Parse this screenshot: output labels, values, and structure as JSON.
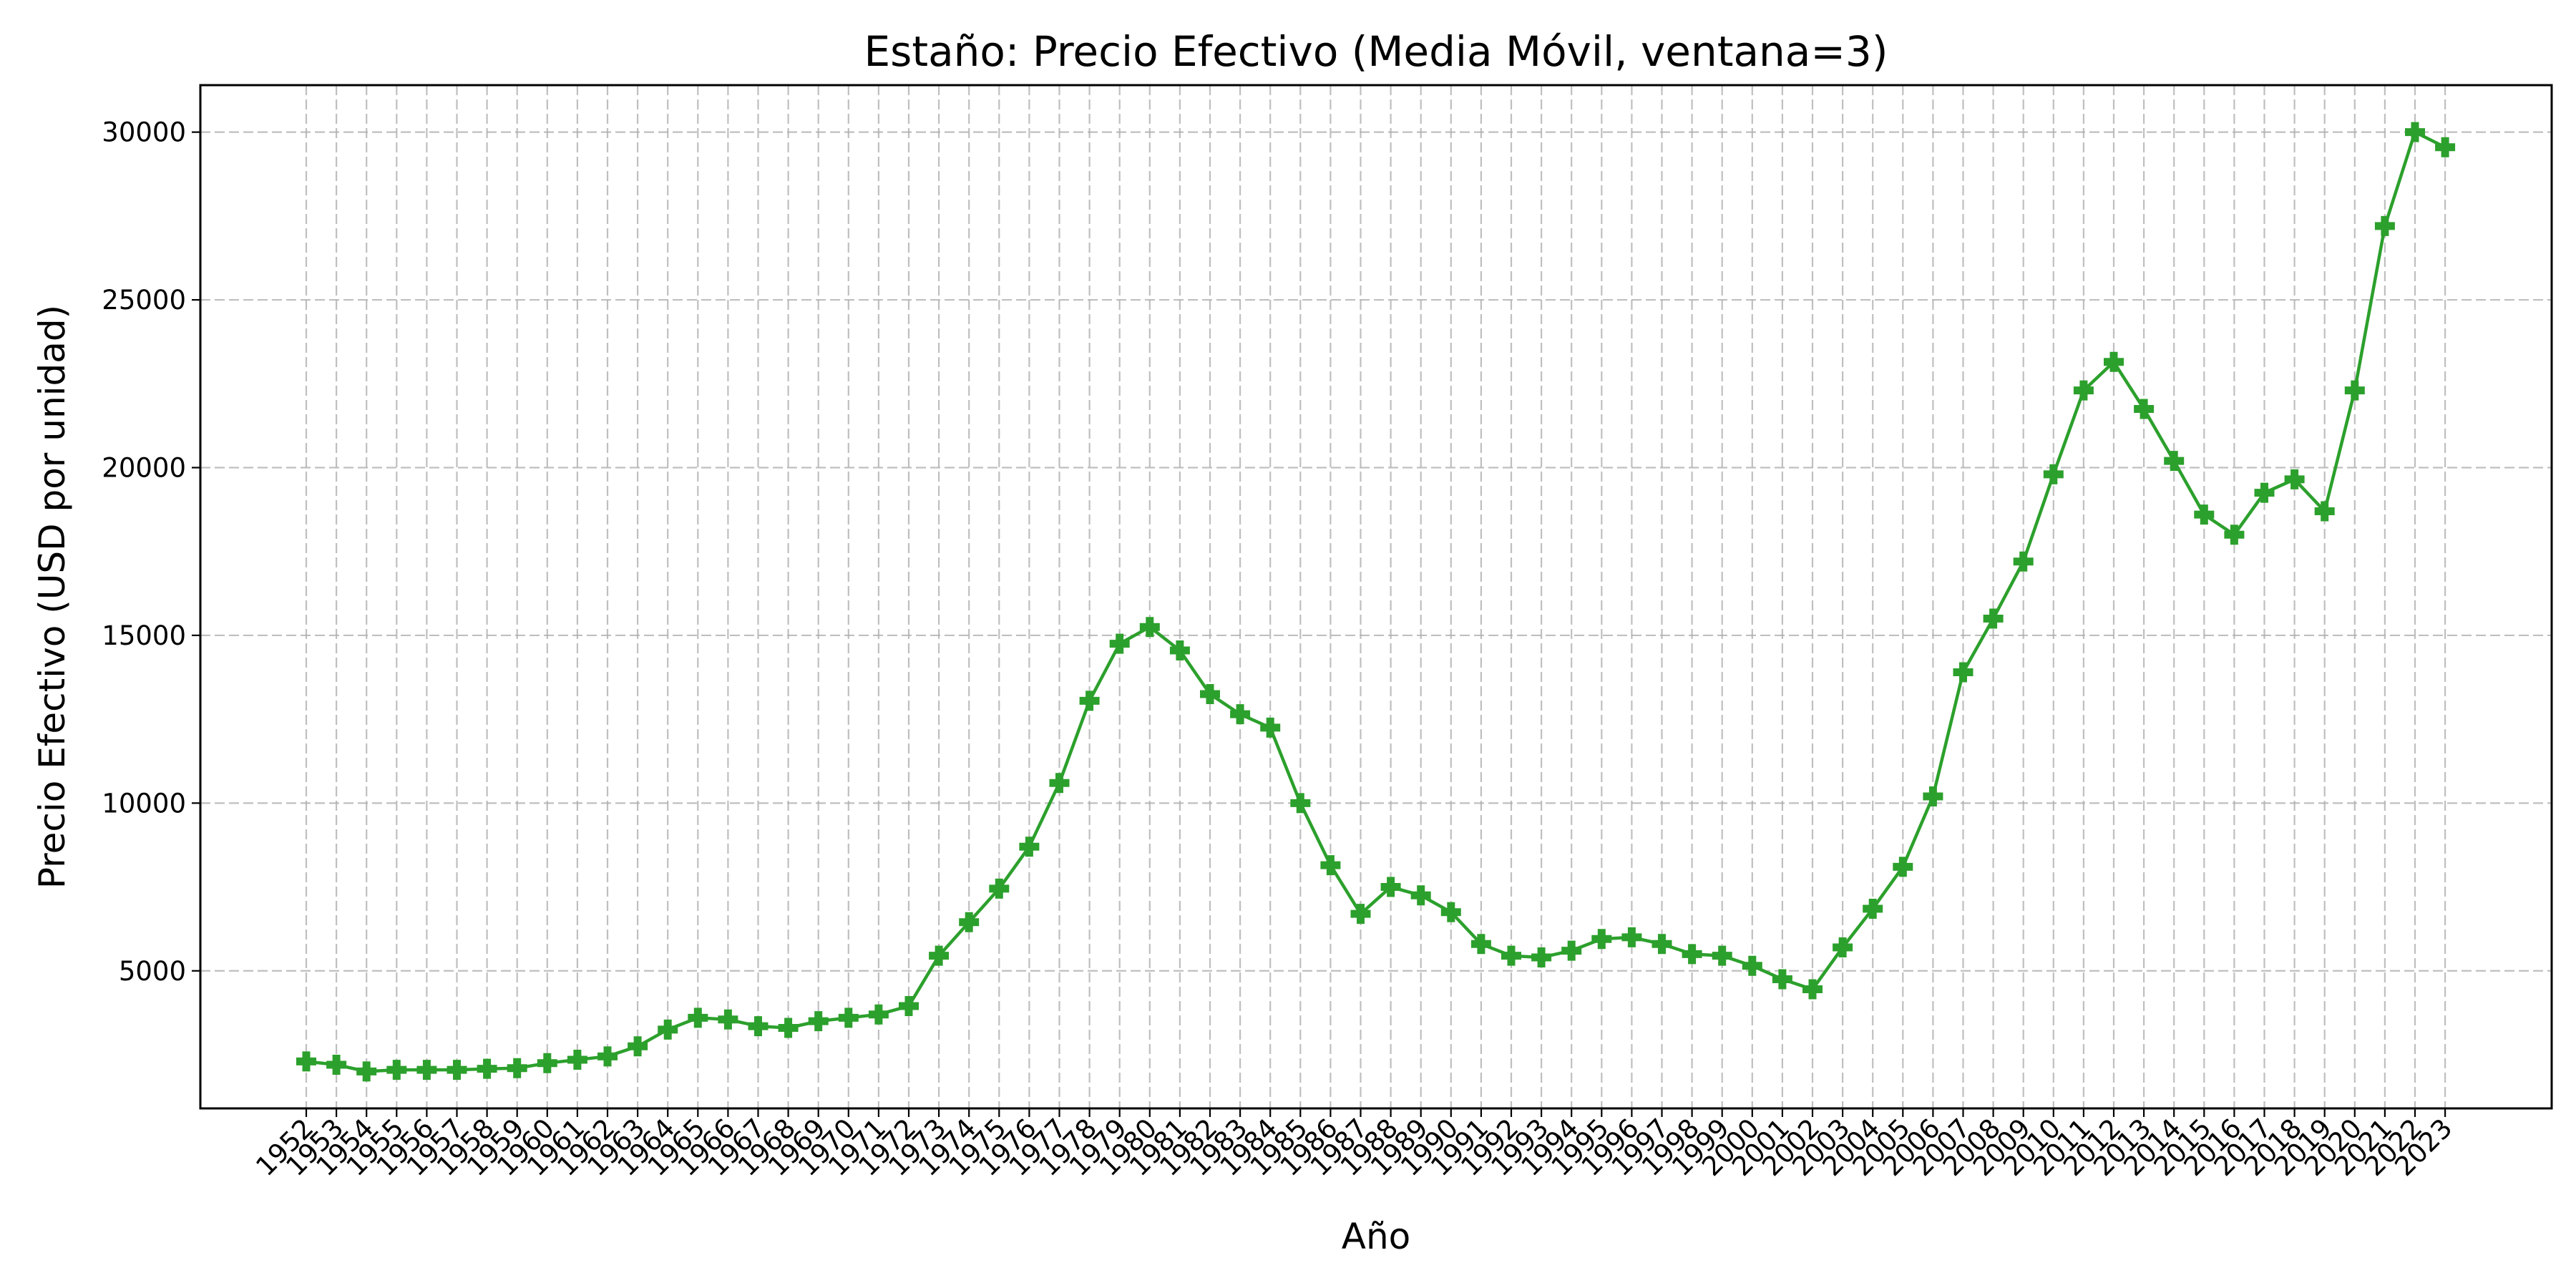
{
  "chart_data": {
    "type": "line",
    "title": "Estaño: Precio Efectivo (Media Móvil, ventana=3)",
    "xlabel": "Año",
    "ylabel": "Precio Efectivo (USD por unidad)",
    "ylim": [
      900,
      31400
    ],
    "yticks": [
      5000,
      10000,
      15000,
      20000,
      25000,
      30000
    ],
    "grid": true,
    "color": "#2ca02c",
    "marker": "plus-filled",
    "x": [
      "1952",
      "1953",
      "1954",
      "1955",
      "1956",
      "1957",
      "1958",
      "1959",
      "1960",
      "1961",
      "1962",
      "1963",
      "1964",
      "1965",
      "1966",
      "1967",
      "1968",
      "1969",
      "1970",
      "1971",
      "1972",
      "1973",
      "1974",
      "1975",
      "1976",
      "1977",
      "1978",
      "1979",
      "1980",
      "1981",
      "1982",
      "1983",
      "1984",
      "1985",
      "1986",
      "1987",
      "1988",
      "1989",
      "1990",
      "1991",
      "1992",
      "1993",
      "1994",
      "1995",
      "1996",
      "1997",
      "1998",
      "1999",
      "2000",
      "2001",
      "2002",
      "2003",
      "2004",
      "2005",
      "2006",
      "2007",
      "2008",
      "2009",
      "2010",
      "2011",
      "2012",
      "2013",
      "2014",
      "2015",
      "2016",
      "2017",
      "2018",
      "2019",
      "2020",
      "2021",
      "2022",
      "2023"
    ],
    "series": [
      {
        "values": [
          2300,
          2200,
          2000,
          2050,
          2050,
          2050,
          2080,
          2100,
          2250,
          2350,
          2450,
          2750,
          3250,
          3600,
          3550,
          3350,
          3300,
          3500,
          3600,
          3700,
          3950,
          5450,
          6450,
          7450,
          8700,
          10600,
          13050,
          14750,
          15250,
          14550,
          13250,
          12650,
          12250,
          10000,
          8150,
          6700,
          7500,
          7250,
          6750,
          5800,
          5450,
          5400,
          5600,
          5950,
          6000,
          5800,
          5500,
          5450,
          5150,
          4750,
          4450,
          5700,
          6850,
          8100,
          10200,
          13900,
          15500,
          17200,
          19800,
          22300,
          23150,
          21750,
          20200,
          18600,
          18000,
          19250,
          19650,
          18700,
          22300,
          27200,
          30000,
          29550
        ]
      }
    ]
  }
}
